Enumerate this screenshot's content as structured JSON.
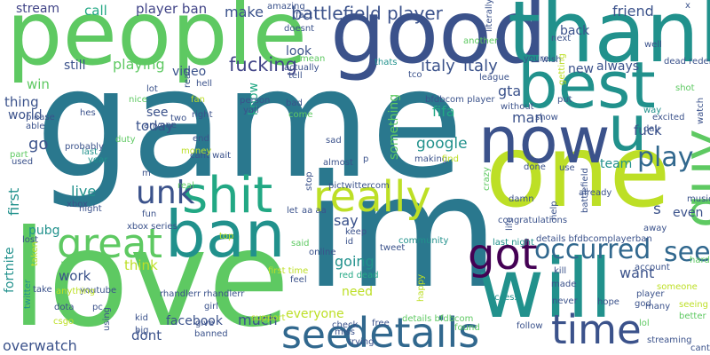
{
  "cloud": {
    "words": [
      {
        "id": "game",
        "text": "game",
        "color": "#2a788e"
      },
      {
        "id": "im",
        "text": "im",
        "color": "#2a788e"
      },
      {
        "id": "love",
        "text": "love",
        "color": "#5ec962"
      },
      {
        "id": "people",
        "text": "people",
        "color": "#5ec962"
      },
      {
        "id": "good",
        "text": "good",
        "color": "#3b528b"
      },
      {
        "id": "thank",
        "text": "thank",
        "color": "#21918c"
      },
      {
        "id": "one",
        "text": "one",
        "color": "#bddf26"
      },
      {
        "id": "best",
        "text": "best",
        "color": "#21918c"
      },
      {
        "id": "now",
        "text": "now",
        "color": "#3b528b"
      },
      {
        "id": "u",
        "text": "u",
        "color": "#21918c"
      },
      {
        "id": "will",
        "text": "will",
        "color": "#21918c"
      },
      {
        "id": "ban",
        "text": "ban",
        "color": "#21918c"
      },
      {
        "id": "shit",
        "text": "shit",
        "color": "#22a884"
      },
      {
        "id": "really",
        "text": "really",
        "color": "#bddf26"
      },
      {
        "id": "great",
        "text": "great",
        "color": "#5ec962"
      },
      {
        "id": "got",
        "text": "got",
        "color": "#440154"
      },
      {
        "id": "details",
        "text": "details",
        "color": "#31688e"
      },
      {
        "id": "time",
        "text": "time",
        "color": "#3b528b"
      },
      {
        "id": "see_big",
        "text": "see",
        "color": "#31688e"
      },
      {
        "id": "guy",
        "text": "guy",
        "color": "#5ec962"
      },
      {
        "id": "unk",
        "text": "unk",
        "color": "#3b528b"
      },
      {
        "id": "play",
        "text": "play",
        "color": "#31688e"
      },
      {
        "id": "occurred",
        "text": "occurred",
        "color": "#31688e"
      },
      {
        "id": "see2",
        "text": "see",
        "color": "#31688e"
      },
      {
        "id": "fucking",
        "text": "fucking",
        "color": "#414487"
      },
      {
        "id": "italy1",
        "text": "italy",
        "color": "#3b528b"
      },
      {
        "id": "italy2",
        "text": "italy",
        "color": "#3b528b"
      },
      {
        "id": "battlefield_player",
        "text": "battlefield player",
        "color": "#3b528b"
      },
      {
        "id": "player_ban",
        "text": "player ban",
        "color": "#414487"
      },
      {
        "id": "stream",
        "text": "stream",
        "color": "#414487"
      },
      {
        "id": "call",
        "text": "call",
        "color": "#22a884"
      },
      {
        "id": "make",
        "text": "make",
        "color": "#3b528b"
      },
      {
        "id": "friend",
        "text": "friend",
        "color": "#3b528b"
      },
      {
        "id": "back",
        "text": "back",
        "color": "#3b528b"
      },
      {
        "id": "look",
        "text": "look",
        "color": "#3b528b"
      },
      {
        "id": "still",
        "text": "still",
        "color": "#3b528b"
      },
      {
        "id": "playing",
        "text": "playing",
        "color": "#5ec962"
      },
      {
        "id": "video",
        "text": "video",
        "color": "#3b528b"
      },
      {
        "id": "win",
        "text": "win",
        "color": "#5ec962"
      },
      {
        "id": "new",
        "text": "new",
        "color": "#3b528b"
      },
      {
        "id": "always",
        "text": "always",
        "color": "#3b528b"
      },
      {
        "id": "gta",
        "text": "gta",
        "color": "#3b528b"
      },
      {
        "id": "thing",
        "text": "thing",
        "color": "#3b528b"
      },
      {
        "id": "see3",
        "text": "see",
        "color": "#3b528b"
      },
      {
        "id": "fifa",
        "text": "fifa",
        "color": "#22a884"
      },
      {
        "id": "man",
        "text": "man",
        "color": "#3b528b"
      },
      {
        "id": "world",
        "text": "world",
        "color": "#3b528b"
      },
      {
        "id": "fuck",
        "text": "fuck",
        "color": "#3b528b"
      },
      {
        "id": "today",
        "text": "today",
        "color": "#3b528b"
      },
      {
        "id": "google",
        "text": "google",
        "color": "#21918c"
      },
      {
        "id": "go",
        "text": "go",
        "color": "#3b528b"
      },
      {
        "id": "team",
        "text": "team",
        "color": "#21918c"
      },
      {
        "id": "live",
        "text": "live",
        "color": "#21918c"
      },
      {
        "id": "s",
        "text": "s",
        "color": "#3b528b"
      },
      {
        "id": "even",
        "text": "even",
        "color": "#3b528b"
      },
      {
        "id": "say",
        "text": "say",
        "color": "#3b528b"
      },
      {
        "id": "pubg",
        "text": "pubg",
        "color": "#21918c"
      },
      {
        "id": "going",
        "text": "going",
        "color": "#21918c"
      },
      {
        "id": "want",
        "text": "want",
        "color": "#3b528b"
      },
      {
        "id": "think",
        "text": "think",
        "color": "#bddf26"
      },
      {
        "id": "work",
        "text": "work",
        "color": "#3b528b"
      },
      {
        "id": "need",
        "text": "need",
        "color": "#bddf26"
      },
      {
        "id": "everyone",
        "text": "everyone",
        "color": "#bddf26"
      },
      {
        "id": "facebook",
        "text": "facebook",
        "color": "#3b528b"
      },
      {
        "id": "much",
        "text": "much",
        "color": "#3b528b"
      },
      {
        "id": "dont",
        "text": "dont",
        "color": "#3b528b"
      },
      {
        "id": "overwatch",
        "text": "overwatch",
        "color": "#3b528b"
      },
      {
        "id": "fortnite",
        "text": "fortnite",
        "color": "#21918c"
      },
      {
        "id": "first",
        "text": "first",
        "color": "#21918c"
      },
      {
        "id": "know",
        "text": "know",
        "color": "#22a884"
      },
      {
        "id": "something",
        "text": "something",
        "color": "#5ec962"
      },
      {
        "id": "rhandlerr1",
        "text": "rhandlerr rhandlerr",
        "color": "#3b528b"
      },
      {
        "id": "xbox_series",
        "text": "xbox series",
        "color": "#3b528b"
      },
      {
        "id": "pictwittercom",
        "text": "pictwittercom",
        "color": "#3b528b"
      },
      {
        "id": "aa_aa",
        "text": "aa aa",
        "color": "#3b528b"
      },
      {
        "id": "community",
        "text": "community",
        "color": "#21918c"
      },
      {
        "id": "online",
        "text": "online",
        "color": "#3b528b"
      },
      {
        "id": "red_dead",
        "text": "red dead",
        "color": "#22a884"
      },
      {
        "id": "miss",
        "text": "miss",
        "color": "#3b528b"
      },
      {
        "id": "trying",
        "text": "trying",
        "color": "#3b528b"
      },
      {
        "id": "details_bfdbcom",
        "text": "details bfdbcom",
        "color": "#5ec962"
      },
      {
        "id": "details_bfdbcomplayer",
        "text": "details bfdbcomplayerban",
        "color": "#3b528b"
      },
      {
        "id": "last_night",
        "text": "last night",
        "color": "#21918c"
      },
      {
        "id": "first_time",
        "text": "first time",
        "color": "#bddf26"
      },
      {
        "id": "youtube",
        "text": "youtube",
        "color": "#3b528b"
      },
      {
        "id": "pc",
        "text": "pc",
        "color": "#3b528b"
      },
      {
        "id": "kid",
        "text": "kid",
        "color": "#3b528b"
      },
      {
        "id": "girl",
        "text": "girl",
        "color": "#3b528b"
      },
      {
        "id": "give",
        "text": "give",
        "color": "#3b528b"
      },
      {
        "id": "banned",
        "text": "banned",
        "color": "#3b528b"
      },
      {
        "id": "support",
        "text": "support",
        "color": "#bddf26"
      },
      {
        "id": "check",
        "text": "check",
        "color": "#3b528b"
      },
      {
        "id": "free",
        "text": "free",
        "color": "#3b528b"
      },
      {
        "id": "found",
        "text": "found",
        "color": "#5ec962"
      },
      {
        "id": "follow",
        "text": "follow",
        "color": "#3b528b"
      },
      {
        "id": "never",
        "text": "never",
        "color": "#3b528b"
      },
      {
        "id": "hope",
        "text": "hope",
        "color": "#3b528b"
      },
      {
        "id": "made",
        "text": "made",
        "color": "#3b528b"
      },
      {
        "id": "kill",
        "text": "kill",
        "color": "#3b528b"
      },
      {
        "id": "access",
        "text": "access",
        "color": "#21918c"
      },
      {
        "id": "player_sm",
        "text": "player",
        "color": "#3b528b"
      },
      {
        "id": "god",
        "text": "god",
        "color": "#3b528b"
      },
      {
        "id": "many",
        "text": "many",
        "color": "#3b528b"
      },
      {
        "id": "better",
        "text": "better",
        "color": "#5ec962"
      },
      {
        "id": "streaming",
        "text": "streaming",
        "color": "#3b528b"
      },
      {
        "id": "cant_sm",
        "text": "cant",
        "color": "#3b528b"
      },
      {
        "id": "lol",
        "text": "lol",
        "color": "#5ec962"
      },
      {
        "id": "seeing",
        "text": "seeing",
        "color": "#bddf26"
      },
      {
        "id": "someone",
        "text": "someone",
        "color": "#bddf26"
      },
      {
        "id": "account",
        "text": "account",
        "color": "#3b528b"
      },
      {
        "id": "hard",
        "text": "hard",
        "color": "#5ec962"
      },
      {
        "id": "away",
        "text": "away",
        "color": "#3b528b"
      },
      {
        "id": "music",
        "text": "music",
        "color": "#3b528b"
      },
      {
        "id": "day",
        "text": "day",
        "color": "#3b528b"
      },
      {
        "id": "excited",
        "text": "excited",
        "color": "#3b528b"
      },
      {
        "id": "way",
        "text": "way",
        "color": "#21918c"
      },
      {
        "id": "dead_redemption",
        "text": "dead redemption",
        "color": "#3b528b"
      },
      {
        "id": "shot",
        "text": "shot",
        "color": "#3b528b"
      },
      {
        "id": "well",
        "text": "well",
        "color": "#5ec962"
      },
      {
        "id": "x",
        "text": "x",
        "color": "#3b528b"
      },
      {
        "id": "wish",
        "text": "wish",
        "color": "#3b528b"
      },
      {
        "id": "youre",
        "text": "youre",
        "color": "#3b528b"
      },
      {
        "id": "next",
        "text": "next",
        "color": "#3b528b"
      },
      {
        "id": "put",
        "text": "put",
        "color": "#3b528b"
      },
      {
        "id": "show",
        "text": "show",
        "color": "#bddf26"
      },
      {
        "id": "without",
        "text": "without",
        "color": "#3b528b"
      },
      {
        "id": "bfdbcom_player",
        "text": "bfdbcom player",
        "color": "#3b528b"
      },
      {
        "id": "league",
        "text": "league",
        "color": "#3b528b"
      },
      {
        "id": "tco",
        "text": "tco",
        "color": "#3b528b"
      },
      {
        "id": "thats",
        "text": "thats",
        "color": "#3b528b"
      },
      {
        "id": "another",
        "text": "another",
        "color": "#3b528b"
      },
      {
        "id": "making",
        "text": "making",
        "color": "#21918c"
      },
      {
        "id": "find",
        "text": "find",
        "color": "#3b528b"
      },
      {
        "id": "p",
        "text": "p",
        "color": "#5ec962"
      },
      {
        "id": "done",
        "text": "done",
        "color": "#3b528b"
      },
      {
        "id": "use",
        "text": "use",
        "color": "#bddf26"
      },
      {
        "id": "damn",
        "text": "damn",
        "color": "#3b528b"
      },
      {
        "id": "congratulations",
        "text": "congratulations",
        "color": "#3b528b"
      },
      {
        "id": "already",
        "text": "already",
        "color": "#3b528b"
      },
      {
        "id": "keep",
        "text": "keep",
        "color": "#3b528b"
      },
      {
        "id": "tweet",
        "text": "tweet",
        "color": "#5ec962"
      },
      {
        "id": "id",
        "text": "id",
        "color": "#3b528b"
      },
      {
        "id": "sad",
        "text": "sad",
        "color": "#3b528b"
      },
      {
        "id": "almost",
        "text": "almost",
        "color": "#3b528b"
      },
      {
        "id": "let",
        "text": "let",
        "color": "#3b528b"
      },
      {
        "id": "said",
        "text": "said",
        "color": "#3b528b"
      },
      {
        "id": "feel",
        "text": "feel",
        "color": "#3b528b"
      },
      {
        "id": "come",
        "text": "come",
        "color": "#3b528b"
      },
      {
        "id": "bad",
        "text": "bad",
        "color": "#3b528b"
      },
      {
        "id": "person",
        "text": "person",
        "color": "#bddf26"
      },
      {
        "id": "yall",
        "text": "yall",
        "color": "#3b528b"
      },
      {
        "id": "end",
        "text": "end",
        "color": "#3b528b"
      },
      {
        "id": "cant_watch",
        "text": "cant wait",
        "color": "#3b528b"
      },
      {
        "id": "money",
        "text": "money",
        "color": "#3b528b"
      },
      {
        "id": "real",
        "text": "real",
        "color": "#5ec962"
      },
      {
        "id": "top",
        "text": "top",
        "color": "#3b528b"
      },
      {
        "id": "fun",
        "text": "fun",
        "color": "#5ec962"
      },
      {
        "id": "m",
        "text": "m",
        "color": "#3b528b"
      },
      {
        "id": "night",
        "text": "night",
        "color": "#3b528b"
      },
      {
        "id": "xbox",
        "text": "xbox",
        "color": "#3b528b"
      },
      {
        "id": "last",
        "text": "last",
        "color": "#3b528b"
      },
      {
        "id": "year",
        "text": "year",
        "color": "#3b528b"
      },
      {
        "id": "duty",
        "text": "duty",
        "color": "#bddf26"
      },
      {
        "id": "anyone",
        "text": "anyone",
        "color": "#5ec962"
      },
      {
        "id": "two",
        "text": "two",
        "color": "#bddf26"
      },
      {
        "id": "right",
        "text": "right",
        "color": "#3b528b"
      },
      {
        "id": "fan",
        "text": "fan",
        "color": "#3b528b"
      },
      {
        "id": "nice",
        "text": "nice",
        "color": "#3b528b"
      },
      {
        "id": "hes",
        "text": "hes",
        "color": "#3b528b"
      },
      {
        "id": "please",
        "text": "please",
        "color": "#21918c"
      },
      {
        "id": "able",
        "text": "able",
        "color": "#21918c"
      },
      {
        "id": "probably",
        "text": "probably",
        "color": "#5ec962"
      },
      {
        "id": "part",
        "text": "part",
        "color": "#3b528b"
      },
      {
        "id": "used",
        "text": "used",
        "color": "#3b528b"
      },
      {
        "id": "lot",
        "text": "lot",
        "color": "#3b528b"
      },
      {
        "id": "hell",
        "text": "hell",
        "color": "#bddf26"
      },
      {
        "id": "actually",
        "text": "actually",
        "color": "#5ec962"
      },
      {
        "id": "tell",
        "text": "tell",
        "color": "#3b528b"
      },
      {
        "id": "mean",
        "text": "mean",
        "color": "#3b528b"
      },
      {
        "id": "doesnt",
        "text": "doesnt",
        "color": "#3b528b"
      },
      {
        "id": "fact",
        "text": "fact",
        "color": "#3b528b"
      },
      {
        "id": "amazing",
        "text": "amazing",
        "color": "#5ec962"
      },
      {
        "id": "lost",
        "text": "lost",
        "color": "#3b528b"
      },
      {
        "id": "take",
        "text": "take",
        "color": "#3b528b"
      },
      {
        "id": "dota",
        "text": "dota",
        "color": "#3b528b"
      },
      {
        "id": "csgo",
        "text": "csgo",
        "color": "#3b528b"
      },
      {
        "id": "big",
        "text": "big",
        "color": "#3b528b"
      },
      {
        "id": "anything",
        "text": "anything",
        "color": "#3b528b"
      },
      {
        "id": "watch",
        "text": "watch",
        "color": "#5ec962"
      },
      {
        "id": "getting",
        "text": "getting",
        "color": "#3b528b"
      },
      {
        "id": "literally",
        "text": "literally",
        "color": "#3b528b"
      },
      {
        "id": "read",
        "text": "read",
        "color": "#3b528b"
      },
      {
        "id": "life",
        "text": "life",
        "color": "#3b528b"
      },
      {
        "id": "crazy",
        "text": "crazy",
        "color": "#bddf26"
      },
      {
        "id": "help",
        "text": "help",
        "color": "#bddf26"
      },
      {
        "id": "battlefield_sm",
        "text": "battlefield",
        "color": "#21918c"
      },
      {
        "id": "happy",
        "text": "happy",
        "color": "#3b528b"
      },
      {
        "id": "stop",
        "text": "stop",
        "color": "#3b528b"
      },
      {
        "id": "taken",
        "text": "taken",
        "color": "#bddf26"
      },
      {
        "id": "twitter",
        "text": "twitter",
        "color": "#3b528b"
      },
      {
        "id": "using",
        "text": "using",
        "color": "#3b528b"
      }
    ]
  }
}
